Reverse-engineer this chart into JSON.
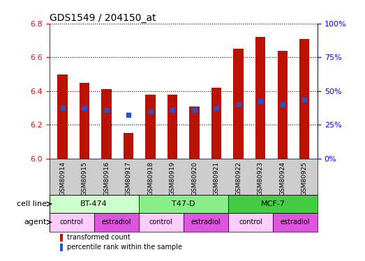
{
  "title": "GDS1549 / 204150_at",
  "samples": [
    "GSM80914",
    "GSM80915",
    "GSM80916",
    "GSM80917",
    "GSM80918",
    "GSM80919",
    "GSM80920",
    "GSM80921",
    "GSM80922",
    "GSM80923",
    "GSM80924",
    "GSM80925"
  ],
  "bar_values": [
    6.5,
    6.45,
    6.41,
    6.15,
    6.38,
    6.38,
    6.31,
    6.42,
    6.65,
    6.72,
    6.64,
    6.71
  ],
  "blue_dot_values": [
    6.3,
    6.3,
    6.29,
    6.26,
    6.28,
    6.29,
    6.29,
    6.3,
    6.32,
    6.34,
    6.32,
    6.35
  ],
  "bar_bottom": 6.0,
  "ylim": [
    6.0,
    6.8
  ],
  "y2lim": [
    0,
    100
  ],
  "yticks": [
    6.0,
    6.2,
    6.4,
    6.6,
    6.8
  ],
  "y2ticks": [
    0,
    25,
    50,
    75,
    100
  ],
  "y2ticklabels": [
    "0%",
    "25%",
    "50%",
    "75%",
    "100%"
  ],
  "bar_color": "#bb1100",
  "blue_color": "#2255cc",
  "cell_line_groups": [
    {
      "label": "BT-474",
      "start": 0,
      "end": 3,
      "color": "#ccffcc"
    },
    {
      "label": "T47-D",
      "start": 4,
      "end": 7,
      "color": "#88ee88"
    },
    {
      "label": "MCF-7",
      "start": 8,
      "end": 11,
      "color": "#44cc44"
    }
  ],
  "agent_groups": [
    {
      "label": "control",
      "start": 0,
      "end": 1,
      "color": "#ffccff"
    },
    {
      "label": "estradiol",
      "start": 2,
      "end": 3,
      "color": "#dd55dd"
    },
    {
      "label": "control",
      "start": 4,
      "end": 5,
      "color": "#ffccff"
    },
    {
      "label": "estradiol",
      "start": 6,
      "end": 7,
      "color": "#dd55dd"
    },
    {
      "label": "control",
      "start": 8,
      "end": 9,
      "color": "#ffccff"
    },
    {
      "label": "estradiol",
      "start": 10,
      "end": 11,
      "color": "#dd55dd"
    }
  ],
  "legend_items": [
    {
      "color": "#bb1100",
      "label": "transformed count"
    },
    {
      "color": "#2255cc",
      "label": "percentile rank within the sample"
    }
  ],
  "bar_width": 0.45,
  "tick_fontsize": 8,
  "title_fontsize": 10,
  "label_fontsize": 8,
  "group_fontsize": 8,
  "agent_fontsize": 7,
  "legend_fontsize": 7,
  "sample_fontsize": 6.5,
  "xticklabel_area_color": "#cccccc",
  "cell_line_label": "cell line",
  "agent_label": "agent"
}
